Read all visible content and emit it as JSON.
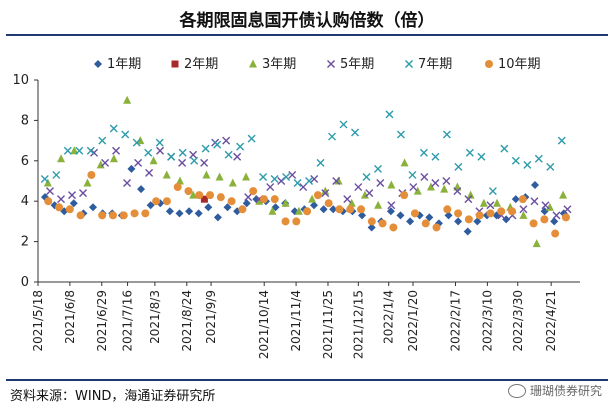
{
  "title": "各期限固息国开债认购倍数（倍）",
  "source": "资料来源：WIND，海通证券研究所",
  "watermark": "珊瑚债券研究",
  "chart_data": {
    "type": "scatter",
    "ylim": [
      0,
      10
    ],
    "yticks": [
      0,
      2,
      4,
      6,
      8,
      10
    ],
    "x_start": "2021-05-18",
    "x_end": "2022-05-10",
    "xtick_labels": [
      "2021/5/18",
      "2021/6/8",
      "2021/6/29",
      "2021/7/16",
      "2021/8/3",
      "2021/8/24",
      "2021/9/9",
      "2021/10/14",
      "2021/11/4",
      "2021/11/25",
      "2021/12/15",
      "2022/1/4",
      "2022/1/20",
      "2022/2/17",
      "2022/3/10",
      "2022/3/30",
      "2022/4/21"
    ],
    "xtick_dates": [
      "2021-05-18",
      "2021-06-08",
      "2021-06-29",
      "2021-07-16",
      "2021-08-03",
      "2021-08-24",
      "2021-09-09",
      "2021-10-14",
      "2021-11-04",
      "2021-11-25",
      "2021-12-15",
      "2022-01-04",
      "2022-01-20",
      "2022-02-17",
      "2022-03-10",
      "2022-03-30",
      "2022-04-21"
    ],
    "series": [
      {
        "name": "1年期",
        "marker": "diamond",
        "color": "#2e5c9f",
        "values": [
          4.2,
          3.8,
          3.5,
          3.9,
          3.4,
          3.7,
          3.4,
          3.4,
          3.3,
          5.6,
          4.6,
          3.8,
          3.9,
          3.5,
          3.4,
          3.5,
          3.4,
          3.7,
          3.2,
          3.7,
          3.5,
          3.9,
          4.1,
          4.0,
          3.7,
          3.9,
          3.5,
          3.6,
          3.8,
          3.6,
          3.6,
          3.5,
          3.5,
          3.3,
          2.7,
          3.0,
          3.5,
          3.3,
          3.0,
          3.3,
          3.2,
          2.9,
          3.3,
          3.0,
          2.5,
          3.0,
          3.3,
          3.3,
          3.1,
          4.1,
          4.2,
          4.8,
          3.5,
          3.0,
          3.4
        ]
      },
      {
        "name": "2年期",
        "marker": "square",
        "color": "#a52a2a",
        "values": [
          4.1
        ]
      },
      {
        "name": "3年期",
        "marker": "triangle",
        "color": "#8ab13a",
        "values": [
          4.9,
          6.1,
          6.5,
          4.9,
          5.8,
          6.1,
          9.0,
          7.0,
          6.0,
          5.3,
          5.0,
          4.3,
          5.3,
          5.2,
          4.9,
          5.2,
          4.0,
          3.5,
          3.9,
          3.5,
          4.1,
          4.5,
          5.0,
          3.9,
          4.3,
          3.8,
          4.8,
          5.9,
          4.5,
          4.7,
          4.6,
          4.7,
          4.3,
          3.9,
          3.9,
          3.7,
          3.3,
          1.9,
          3.7,
          4.3
        ]
      },
      {
        "name": "5年期",
        "marker": "x",
        "color": "#6a4ea0",
        "values": [
          4.5,
          4.1,
          4.3,
          4.4,
          6.4,
          5.9,
          6.5,
          4.9,
          5.9,
          5.4,
          6.5,
          6.2,
          5.9,
          6.3,
          5.9,
          6.9,
          7.0,
          6.2,
          4.2,
          4.1,
          4.7,
          5.0,
          5.3,
          4.7,
          5.1,
          4.4,
          5.0,
          4.1,
          4.7,
          4.4,
          4.9,
          3.8,
          4.4,
          4.7,
          5.2,
          4.9,
          5.0,
          4.5,
          4.1,
          3.5,
          3.8,
          3.3,
          3.3,
          3.6,
          4.0,
          3.8,
          3.3,
          3.6
        ]
      },
      {
        "name": "7年期",
        "marker": "x",
        "color": "#2e9bab",
        "values": [
          5.1,
          5.3,
          6.5,
          6.5,
          6.5,
          7.0,
          7.6,
          7.3,
          6.9,
          6.4,
          6.9,
          6.2,
          6.4,
          6.0,
          6.6,
          6.8,
          6.3,
          6.7,
          7.1,
          5.2,
          5.1,
          5.2,
          4.9,
          5.0,
          5.9,
          7.2,
          7.8,
          7.4,
          5.2,
          5.6,
          8.3,
          7.3,
          5.3,
          6.4,
          6.2,
          7.3,
          5.7,
          6.4,
          6.2,
          4.5,
          6.6,
          6.0,
          5.8,
          6.1,
          5.7,
          7.0
        ]
      },
      {
        "name": "10年期",
        "marker": "circle",
        "color": "#e58e3a",
        "values": [
          4.0,
          3.7,
          3.6,
          3.3,
          5.3,
          3.3,
          3.3,
          3.3,
          3.4,
          3.4,
          4.0,
          4.0,
          4.7,
          4.5,
          4.3,
          4.3,
          4.2,
          4.0,
          3.6,
          4.5,
          4.1,
          4.1,
          3.0,
          3.0,
          3.5,
          4.3,
          3.9,
          3.6,
          3.6,
          3.6,
          3.0,
          2.9,
          2.7,
          4.3,
          3.4,
          2.9,
          2.7,
          3.6,
          3.4,
          3.1,
          3.3,
          3.4,
          3.5,
          3.5,
          4.1,
          2.9,
          3.1,
          2.4,
          3.2
        ]
      }
    ]
  }
}
